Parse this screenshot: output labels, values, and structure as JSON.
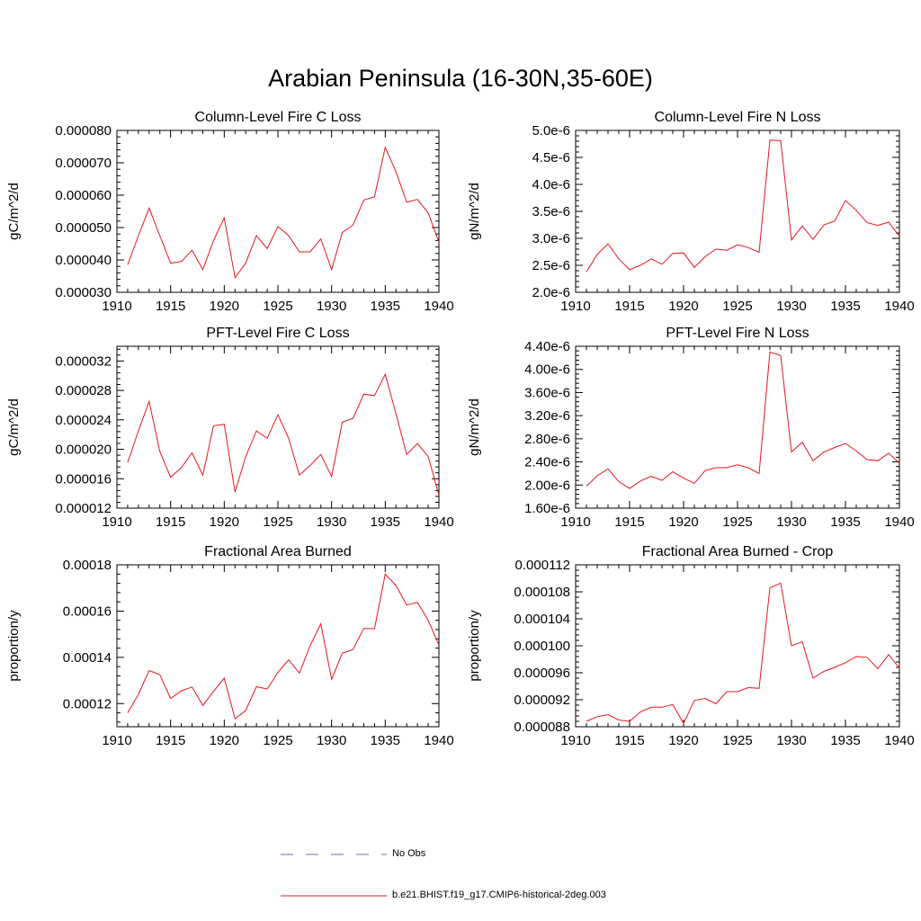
{
  "title": "Arabian Peninsula (16-30N,35-60E)",
  "colors": {
    "model": "#e8151b",
    "obs": "#6f6fb0",
    "axis": "#000000"
  },
  "legend": [
    {
      "label": "No Obs",
      "style": "dashed",
      "color": "#6f6fb0"
    },
    {
      "label": "b.e21.BHIST.f19_g17.CMIP6-historical-2deg.003",
      "style": "solid",
      "color": "#e8151b"
    }
  ],
  "chart_data": [
    {
      "type": "line",
      "title": "Column-Level Fire C Loss",
      "ylabel": "gC/m^2/d",
      "xlim": [
        1910,
        1940
      ],
      "ylim": [
        3e-05,
        8e-05
      ],
      "xticks": [
        "1910",
        "1915",
        "1920",
        "1925",
        "1930",
        "1935",
        "1940"
      ],
      "yticks": [
        "0.000030",
        "0.000040",
        "0.000050",
        "0.000060",
        "0.000070",
        "0.000080"
      ],
      "x": [
        1911,
        1912,
        1913,
        1914,
        1915,
        1916,
        1917,
        1918,
        1919,
        1920,
        1921,
        1922,
        1923,
        1924,
        1925,
        1926,
        1927,
        1928,
        1929,
        1930,
        1931,
        1932,
        1933,
        1934,
        1935,
        1936,
        1937,
        1938,
        1939,
        1940
      ],
      "series": [
        {
          "values": [
            3.85e-05,
            4.75e-05,
            5.6e-05,
            4.75e-05,
            3.9e-05,
            3.95e-05,
            4.3e-05,
            3.7e-05,
            4.6e-05,
            5.3e-05,
            3.45e-05,
            3.9e-05,
            4.75e-05,
            4.35e-05,
            5.03e-05,
            4.75e-05,
            4.25e-05,
            4.25e-05,
            4.65e-05,
            3.7e-05,
            4.85e-05,
            5.08e-05,
            5.85e-05,
            5.95e-05,
            7.48e-05,
            6.72e-05,
            5.78e-05,
            5.87e-05,
            5.45e-05,
            4.55e-05
          ]
        }
      ]
    },
    {
      "type": "line",
      "title": "Column-Level Fire N Loss",
      "ylabel": "gN/m^2/d",
      "xlim": [
        1910,
        1940
      ],
      "ylim": [
        2e-06,
        5e-06
      ],
      "xticks": [
        "1910",
        "1915",
        "1920",
        "1925",
        "1930",
        "1935",
        "1940"
      ],
      "yticks": [
        "2.0e-6",
        "2.5e-6",
        "3.0e-6",
        "3.5e-6",
        "4.0e-6",
        "4.5e-6",
        "5.0e-6"
      ],
      "x": [
        1911,
        1912,
        1913,
        1914,
        1915,
        1916,
        1917,
        1918,
        1919,
        1920,
        1921,
        1922,
        1923,
        1924,
        1925,
        1926,
        1927,
        1928,
        1929,
        1930,
        1931,
        1932,
        1933,
        1934,
        1935,
        1936,
        1937,
        1938,
        1939,
        1940
      ],
      "series": [
        {
          "values": [
            2.38e-06,
            2.7e-06,
            2.9e-06,
            2.62e-06,
            2.42e-06,
            2.5e-06,
            2.62e-06,
            2.52e-06,
            2.72e-06,
            2.73e-06,
            2.46e-06,
            2.66e-06,
            2.8e-06,
            2.78e-06,
            2.88e-06,
            2.83e-06,
            2.74e-06,
            4.82e-06,
            4.81e-06,
            2.97e-06,
            3.23e-06,
            2.98e-06,
            3.25e-06,
            3.32e-06,
            3.7e-06,
            3.52e-06,
            3.29e-06,
            3.24e-06,
            3.3e-06,
            3.04e-06
          ]
        }
      ]
    },
    {
      "type": "line",
      "title": "PFT-Level Fire C Loss",
      "ylabel": "gC/m^2/d",
      "xlim": [
        1910,
        1940
      ],
      "ylim": [
        1.2e-05,
        3.4e-05
      ],
      "xticks": [
        "1910",
        "1915",
        "1920",
        "1925",
        "1930",
        "1935",
        "1940"
      ],
      "yticks": [
        "0.000012",
        "0.000016",
        "0.000020",
        "0.000024",
        "0.000028",
        "0.000032"
      ],
      "x": [
        1911,
        1912,
        1913,
        1914,
        1915,
        1916,
        1917,
        1918,
        1919,
        1920,
        1921,
        1922,
        1923,
        1924,
        1925,
        1926,
        1927,
        1928,
        1929,
        1930,
        1931,
        1932,
        1933,
        1934,
        1935,
        1936,
        1937,
        1938,
        1939,
        1940
      ],
      "series": [
        {
          "values": [
            1.82e-05,
            2.25e-05,
            2.65e-05,
            1.97e-05,
            1.62e-05,
            1.75e-05,
            1.95e-05,
            1.65e-05,
            2.32e-05,
            2.34e-05,
            1.42e-05,
            1.9e-05,
            2.25e-05,
            2.15e-05,
            2.47e-05,
            2.15e-05,
            1.65e-05,
            1.78e-05,
            1.93e-05,
            1.63e-05,
            2.37e-05,
            2.42e-05,
            2.75e-05,
            2.73e-05,
            3.02e-05,
            2.48e-05,
            1.93e-05,
            2.08e-05,
            1.9e-05,
            1.38e-05
          ]
        }
      ]
    },
    {
      "type": "line",
      "title": "PFT-Level Fire N Loss",
      "ylabel": "gN/m^2/d",
      "xlim": [
        1910,
        1940
      ],
      "ylim": [
        1.6e-06,
        4.4e-06
      ],
      "xticks": [
        "1910",
        "1915",
        "1920",
        "1925",
        "1930",
        "1935",
        "1940"
      ],
      "yticks": [
        "1.60e-6",
        "2.00e-6",
        "2.40e-6",
        "2.80e-6",
        "3.20e-6",
        "3.60e-6",
        "4.00e-6",
        "4.40e-6"
      ],
      "x": [
        1911,
        1912,
        1913,
        1914,
        1915,
        1916,
        1917,
        1918,
        1919,
        1920,
        1921,
        1922,
        1923,
        1924,
        1925,
        1926,
        1927,
        1928,
        1929,
        1930,
        1931,
        1932,
        1933,
        1934,
        1935,
        1936,
        1937,
        1938,
        1939,
        1940
      ],
      "series": [
        {
          "values": [
            1.98e-06,
            2.16e-06,
            2.28e-06,
            2.06e-06,
            1.94e-06,
            2.07e-06,
            2.15e-06,
            2.08e-06,
            2.23e-06,
            2.12e-06,
            2.03e-06,
            2.25e-06,
            2.3e-06,
            2.3e-06,
            2.35e-06,
            2.3e-06,
            2.2e-06,
            4.3e-06,
            4.24e-06,
            2.57e-06,
            2.74e-06,
            2.42e-06,
            2.57e-06,
            2.65e-06,
            2.72e-06,
            2.59e-06,
            2.44e-06,
            2.42e-06,
            2.55e-06,
            2.38e-06
          ]
        }
      ]
    },
    {
      "type": "line",
      "title": "Fractional Area Burned",
      "ylabel": "proportion/y",
      "xlim": [
        1910,
        1940
      ],
      "ylim": [
        0.00011,
        0.00018
      ],
      "xticks": [
        "1910",
        "1915",
        "1920",
        "1925",
        "1930",
        "1935",
        "1940"
      ],
      "yticks": [
        "0.00012",
        "0.00014",
        "0.00016",
        "0.00018"
      ],
      "x": [
        1911,
        1912,
        1913,
        1914,
        1915,
        1916,
        1917,
        1918,
        1919,
        1920,
        1921,
        1922,
        1923,
        1924,
        1925,
        1926,
        1927,
        1928,
        1929,
        1930,
        1931,
        1932,
        1933,
        1934,
        1935,
        1936,
        1937,
        1938,
        1939,
        1940
      ],
      "series": [
        {
          "values": [
            0.000116,
            0.000124,
            0.0001343,
            0.0001325,
            0.0001222,
            0.0001255,
            0.0001272,
            0.0001192,
            0.0001253,
            0.000131,
            0.0001135,
            0.000117,
            0.0001273,
            0.0001263,
            0.0001335,
            0.0001389,
            0.0001332,
            0.000145,
            0.0001545,
            0.0001305,
            0.0001418,
            0.0001434,
            0.0001525,
            0.0001524,
            0.000176,
            0.000171,
            0.0001626,
            0.0001638,
            0.000156,
            0.0001453
          ]
        }
      ]
    },
    {
      "type": "line",
      "title": "Fractional Area Burned - Crop",
      "ylabel": "proportion/y",
      "xlim": [
        1910,
        1940
      ],
      "ylim": [
        8.8e-05,
        0.000112
      ],
      "xticks": [
        "1910",
        "1915",
        "1920",
        "1925",
        "1930",
        "1935",
        "1940"
      ],
      "yticks": [
        "0.000088",
        "0.000092",
        "0.000096",
        "0.000100",
        "0.000104",
        "0.000108",
        "0.000112"
      ],
      "x": [
        1911,
        1912,
        1913,
        1914,
        1915,
        1916,
        1917,
        1918,
        1919,
        1920,
        1921,
        1922,
        1923,
        1924,
        1925,
        1926,
        1927,
        1928,
        1929,
        1930,
        1931,
        1932,
        1933,
        1934,
        1935,
        1936,
        1937,
        1938,
        1939,
        1940
      ],
      "series": [
        {
          "values": [
            8.88e-05,
            8.95e-05,
            8.98e-05,
            8.9e-05,
            8.88e-05,
            9.02e-05,
            9.09e-05,
            9.09e-05,
            9.13e-05,
            8.85e-05,
            9.19e-05,
            9.22e-05,
            9.14e-05,
            9.32e-05,
            9.32e-05,
            9.38e-05,
            9.37e-05,
            0.0001086,
            0.0001093,
            0.0001,
            0.0001006,
            9.52e-05,
            9.62e-05,
            9.68e-05,
            9.75e-05,
            9.84e-05,
            9.83e-05,
            9.66e-05,
            9.87e-05,
            9.67e-05
          ]
        }
      ]
    }
  ]
}
